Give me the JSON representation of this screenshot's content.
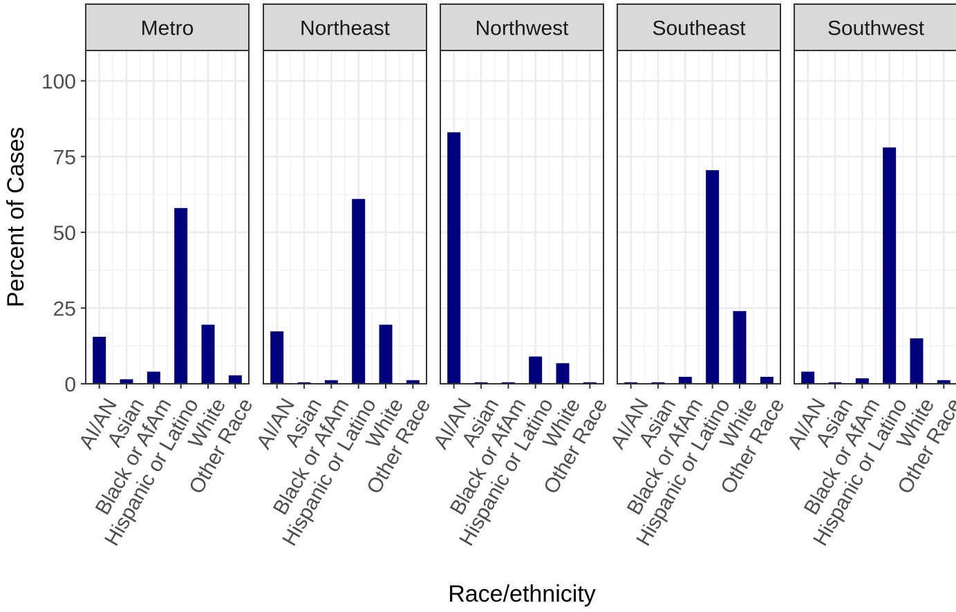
{
  "chart_data": {
    "type": "bar",
    "xlabel": "Race/ethnicity",
    "ylabel": "Percent of Cases",
    "ylim": [
      0,
      110
    ],
    "yticks": [
      0,
      25,
      50,
      75,
      100
    ],
    "grid": true,
    "bar_color": "#00007f",
    "strip_color": "#d9d9d9",
    "categories": [
      "AI/AN",
      "Asian",
      "Black or AfAm",
      "Hispanic or Latino",
      "White",
      "Other Race"
    ],
    "panels": [
      {
        "name": "Metro",
        "values": [
          15.5,
          1.5,
          4.0,
          58.0,
          19.5,
          2.8
        ]
      },
      {
        "name": "Northeast",
        "values": [
          17.3,
          0.5,
          1.2,
          61.0,
          19.5,
          1.2
        ]
      },
      {
        "name": "Northwest",
        "values": [
          83.0,
          0.5,
          0.5,
          9.0,
          6.8,
          0.5
        ]
      },
      {
        "name": "Southeast",
        "values": [
          0.5,
          0.5,
          2.3,
          70.5,
          24.0,
          2.3
        ]
      },
      {
        "name": "Southwest",
        "values": [
          4.0,
          0.5,
          1.8,
          78.0,
          15.0,
          1.2
        ]
      }
    ]
  }
}
